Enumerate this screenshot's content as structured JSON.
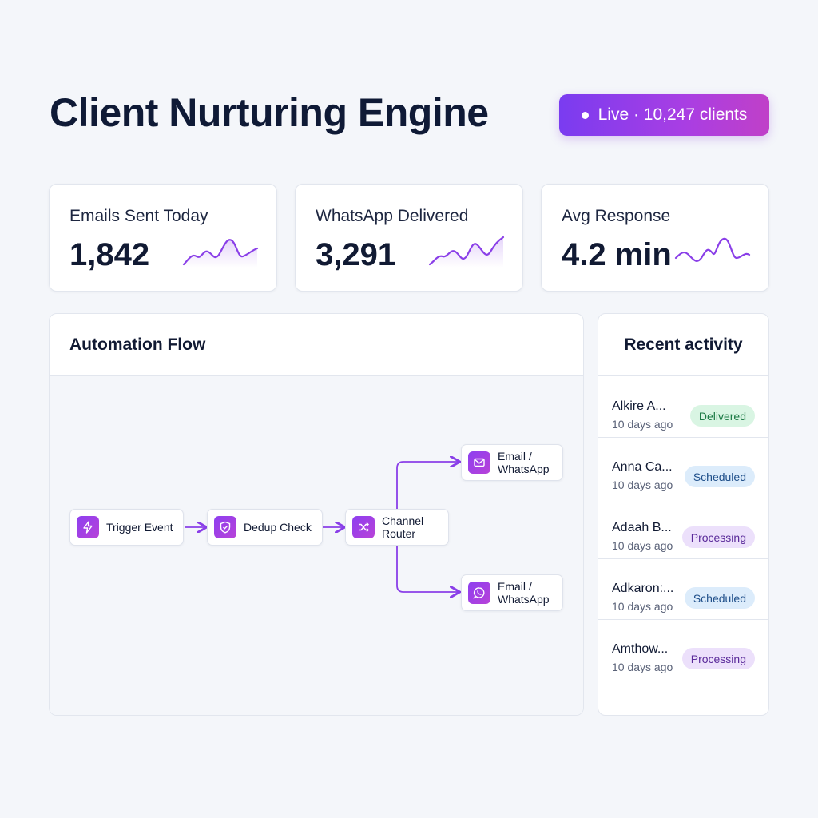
{
  "header": {
    "title": "Client Nurturing Engine",
    "badge": "Live · 10,247 clients"
  },
  "stats": [
    {
      "label": "Emails Sent Today",
      "value": "1,842"
    },
    {
      "label": "WhatsApp Delivered",
      "value": "3,291"
    },
    {
      "label": "Avg Response",
      "value": "4.2 min"
    }
  ],
  "flow": {
    "title": "Automation Flow",
    "nodes": [
      {
        "label": "Trigger Event",
        "icon": "lightning-icon"
      },
      {
        "label": "Dedup Check",
        "icon": "shield-check-icon"
      },
      {
        "label": "Channel\nRouter",
        "icon": "shuffle-icon"
      },
      {
        "label": "Email /\nWhatsApp",
        "icon": "mail-icon"
      },
      {
        "label": "Email /\nWhatsApp",
        "icon": "whatsapp-icon"
      }
    ]
  },
  "activity": {
    "title": "Recent activity",
    "items": [
      {
        "name": "Alkire A...",
        "time": "10 days ago",
        "status": "Delivered"
      },
      {
        "name": "Anna Ca...",
        "time": "10 days ago",
        "status": "Scheduled"
      },
      {
        "name": "Adaah B...",
        "time": "10 days ago",
        "status": "Processing"
      },
      {
        "name": "Adkaron:...",
        "time": "10 days ago",
        "status": "Scheduled"
      },
      {
        "name": "Amthow...",
        "time": "10 days ago",
        "status": "Processing"
      }
    ]
  },
  "colors": {
    "accent": "#8a3fe8",
    "title": "#0f1a36",
    "delivered_bg": "#d9f5e3",
    "delivered_fg": "#1c7a44",
    "scheduled_bg": "#dcecfb",
    "scheduled_fg": "#1f4f8a",
    "processing_bg": "#ece0fb",
    "processing_fg": "#5a2a9a"
  }
}
